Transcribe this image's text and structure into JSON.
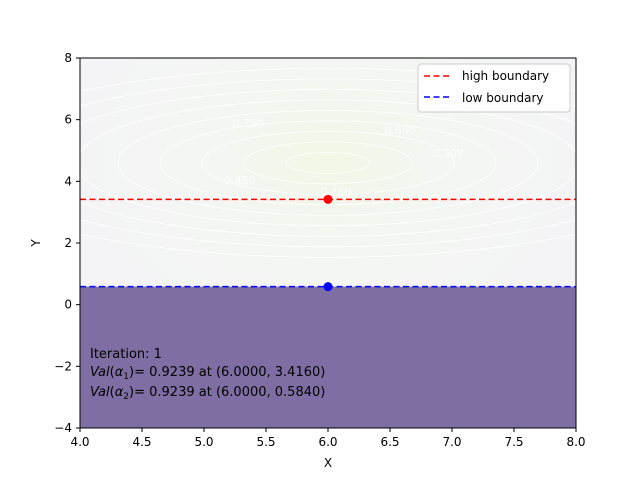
{
  "chart_data": {
    "type": "line",
    "xlabel": "X",
    "ylabel": "Y",
    "xlim": [
      4.0,
      8.0
    ],
    "ylim": [
      -4,
      8
    ],
    "xticks": [
      4.0,
      4.5,
      5.0,
      5.5,
      6.0,
      6.5,
      7.0,
      7.5,
      8.0
    ],
    "xtick_labels": [
      "4.0",
      "4.5",
      "5.0",
      "5.5",
      "6.0",
      "6.5",
      "7.0",
      "7.5",
      "8.0"
    ],
    "yticks": [
      -4,
      -2,
      0,
      2,
      4,
      6,
      8
    ],
    "ytick_labels": [
      "−4",
      "−2",
      "0",
      "2",
      "4",
      "6",
      "8"
    ],
    "grid": false,
    "legend_position": "top-right",
    "series": [
      {
        "name": "high boundary",
        "style": "dashed",
        "color": "#ff0000",
        "y": 3.416
      },
      {
        "name": "low boundary",
        "style": "dashed",
        "color": "#0000ff",
        "y": 0.584
      }
    ],
    "points": [
      {
        "x": 6.0,
        "y": 3.416,
        "color": "#ff0000"
      },
      {
        "x": 6.0,
        "y": 0.584,
        "color": "#0000ff"
      }
    ],
    "shaded_region": {
      "y_from": -4,
      "y_to": 0.584,
      "color": "#7f6ea3"
    },
    "contour": {
      "center": [
        6.0,
        4.6
      ],
      "levels": 9,
      "labels": [
        "0.750",
        "0.600",
        "0.450",
        "0.450",
        "0.300"
      ]
    },
    "annotations": {
      "line1": "Iteration: 1",
      "line2_value": "= 0.9239 at (6.0000, 3.4160)",
      "line3_value": "= 0.9239 at (6.0000, 0.5840)",
      "alpha1_sub": "1",
      "alpha2_sub": "2",
      "val_prefix": "Val",
      "alpha": "α"
    }
  }
}
